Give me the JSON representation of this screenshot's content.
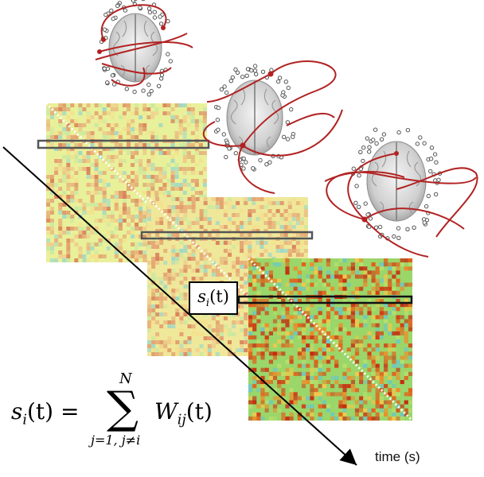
{
  "diagram": {
    "time_axis_label": "time (s)",
    "box_label": {
      "base": "s",
      "sub": "i",
      "arg": "(t)"
    },
    "formula": {
      "lhs_base": "s",
      "lhs_sub": "i",
      "lhs_arg": "(t) =",
      "sum_symbol": "∑",
      "upper_limit": "N",
      "lower_limit": "j=1, j≠i",
      "rhs_base": "W",
      "rhs_sub": "ij",
      "rhs_arg": "(t)"
    },
    "matrices_count": 3,
    "brain_networks_count": 3,
    "colors": {
      "connection_lines": "#b22222",
      "high_value": "#d84a1c",
      "mid_value": "#f2e27a",
      "low_value": "#7fd0c8",
      "axis": "#000000"
    }
  }
}
